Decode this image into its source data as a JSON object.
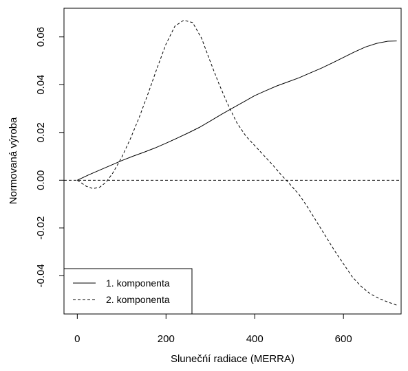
{
  "chart_data": {
    "type": "line",
    "title": "",
    "xlabel": "Slunečńí radiace (MERRA)",
    "ylabel": "Normovaná výroba",
    "xlim": [
      -30,
      730
    ],
    "ylim": [
      -0.056,
      0.072
    ],
    "xticks": [
      0,
      200,
      400,
      600
    ],
    "xtick_labels": [
      "0",
      "200",
      "400",
      "600"
    ],
    "yticks": [
      -0.04,
      -0.02,
      0.0,
      0.02,
      0.04,
      0.06
    ],
    "ytick_labels": [
      "-0.04",
      "-0.02",
      "0.00",
      "0.02",
      "0.04",
      "0.06"
    ],
    "grid": false,
    "legend_position": "bottom-left",
    "reference_line": {
      "y": 0.0,
      "style": "dashed"
    },
    "series": [
      {
        "name": "1. komponenta",
        "style": "solid",
        "color": "#000000",
        "x": [
          0,
          25,
          50,
          75,
          100,
          125,
          150,
          175,
          200,
          225,
          250,
          275,
          300,
          325,
          350,
          375,
          400,
          425,
          450,
          475,
          500,
          525,
          550,
          575,
          600,
          625,
          650,
          675,
          700,
          720
        ],
        "y": [
          0.0,
          0.0022,
          0.0042,
          0.0062,
          0.0082,
          0.01,
          0.0117,
          0.0135,
          0.0155,
          0.0176,
          0.0198,
          0.0221,
          0.0248,
          0.0276,
          0.0302,
          0.0328,
          0.0354,
          0.0375,
          0.0395,
          0.0412,
          0.0429,
          0.0449,
          0.0469,
          0.0491,
          0.0514,
          0.0537,
          0.0558,
          0.0573,
          0.0582,
          0.0583
        ]
      },
      {
        "name": "2. komponenta",
        "style": "dashed",
        "color": "#000000",
        "x": [
          0,
          20,
          35,
          50,
          65,
          80,
          100,
          120,
          140,
          160,
          180,
          200,
          220,
          240,
          260,
          280,
          300,
          320,
          340,
          360,
          380,
          400,
          420,
          440,
          460,
          480,
          500,
          520,
          540,
          560,
          580,
          600,
          620,
          640,
          660,
          680,
          700,
          720
        ],
        "y": [
          0.0,
          -0.0025,
          -0.0035,
          -0.003,
          -0.0008,
          0.003,
          0.0095,
          0.0175,
          0.0265,
          0.0365,
          0.047,
          0.057,
          0.0645,
          0.067,
          0.066,
          0.0595,
          0.0495,
          0.04,
          0.0315,
          0.024,
          0.0185,
          0.0145,
          0.0105,
          0.0065,
          0.0022,
          -0.0018,
          -0.006,
          -0.0115,
          -0.0175,
          -0.0235,
          -0.0295,
          -0.035,
          -0.0405,
          -0.0445,
          -0.0475,
          -0.0495,
          -0.051,
          -0.0523
        ]
      }
    ]
  }
}
